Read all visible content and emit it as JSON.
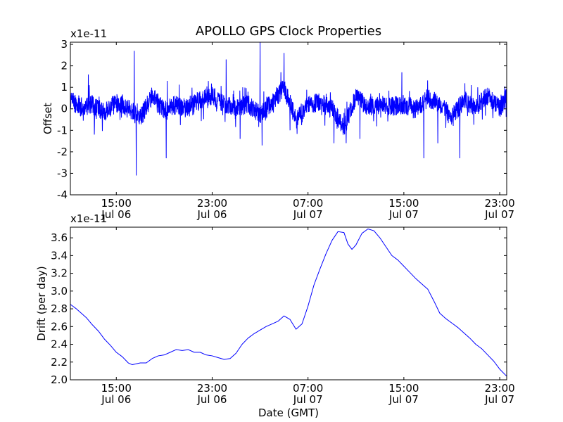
{
  "figure": {
    "title": "APOLLO GPS Clock Properties",
    "xlabel": "Date (GMT)"
  },
  "chart_data": [
    {
      "type": "line",
      "ylabel": "Offset",
      "y_multiplier": "x1e-11",
      "ylim": [
        -4,
        3.1
      ],
      "yticks": [
        -4,
        -3,
        -2,
        -1,
        0,
        1,
        2,
        3
      ],
      "xlim": [
        "Jul 06 11:10",
        "Jul 07 23:35"
      ],
      "xticks": [
        {
          "time": "15:00",
          "date": "Jul 06",
          "at": "Jul 06 15:00"
        },
        {
          "time": "23:00",
          "date": "Jul 06",
          "at": "Jul 06 23:00"
        },
        {
          "time": "07:00",
          "date": "Jul 07",
          "at": "Jul 07 07:00"
        },
        {
          "time": "15:00",
          "date": "Jul 07",
          "at": "Jul 07 15:00"
        },
        {
          "time": "23:00",
          "date": "Jul 07",
          "at": "Jul 07 23:00"
        }
      ],
      "grid": false,
      "color": "#0000ff",
      "series": [
        {
          "x": [
            "Jul 06 11:10",
            "Jul 06 12:00",
            "Jul 06 13:00",
            "Jul 06 14:00",
            "Jul 06 15:00",
            "Jul 06 16:00",
            "Jul 06 17:00",
            "Jul 06 18:00",
            "Jul 06 19:00",
            "Jul 06 20:00",
            "Jul 06 21:00",
            "Jul 06 22:00",
            "Jul 06 23:00",
            "Jul 07 00:00",
            "Jul 07 01:00",
            "Jul 07 02:00",
            "Jul 07 03:00",
            "Jul 07 04:00",
            "Jul 07 05:00",
            "Jul 07 06:00",
            "Jul 07 07:00",
            "Jul 07 08:00",
            "Jul 07 09:00",
            "Jul 07 10:00",
            "Jul 07 11:00",
            "Jul 07 12:00",
            "Jul 07 13:00",
            "Jul 07 14:00",
            "Jul 07 15:00",
            "Jul 07 16:00",
            "Jul 07 17:00",
            "Jul 07 18:00",
            "Jul 07 19:00",
            "Jul 07 20:00",
            "Jul 07 21:00",
            "Jul 07 22:00",
            "Jul 07 23:00",
            "Jul 07 23:35"
          ],
          "values": [
            0.4,
            0.1,
            0.2,
            -0.2,
            0.3,
            0.0,
            -0.4,
            0.6,
            -0.1,
            0.2,
            0.0,
            0.4,
            0.6,
            0.2,
            0.1,
            0.2,
            -0.3,
            0.3,
            1.0,
            -0.5,
            0.2,
            0.3,
            0.0,
            -0.9,
            0.6,
            0.1,
            0.2,
            0.1,
            0.2,
            0.0,
            0.5,
            0.2,
            -0.4,
            0.4,
            0.1,
            0.6,
            0.0,
            0.5
          ],
          "extremes": [
            {
              "x": "Jul 06 12:40",
              "value": 1.6
            },
            {
              "x": "Jul 06 13:10",
              "value": -1.2
            },
            {
              "x": "Jul 06 16:30",
              "value": 2.7
            },
            {
              "x": "Jul 06 16:40",
              "value": -3.1
            },
            {
              "x": "Jul 06 19:10",
              "value": -2.3
            },
            {
              "x": "Jul 06 19:15",
              "value": 1.3
            },
            {
              "x": "Jul 07 00:10",
              "value": 2.3
            },
            {
              "x": "Jul 07 01:20",
              "value": -1.4
            },
            {
              "x": "Jul 07 03:00",
              "value": 3.1
            },
            {
              "x": "Jul 07 03:10",
              "value": -1.7
            },
            {
              "x": "Jul 07 05:00",
              "value": 2.6
            },
            {
              "x": "Jul 07 05:30",
              "value": -1.0
            },
            {
              "x": "Jul 07 09:10",
              "value": -1.6
            },
            {
              "x": "Jul 07 11:20",
              "value": -1.4
            },
            {
              "x": "Jul 07 14:50",
              "value": 1.7
            },
            {
              "x": "Jul 07 16:40",
              "value": -2.3
            },
            {
              "x": "Jul 07 17:50",
              "value": -1.6
            },
            {
              "x": "Jul 07 19:40",
              "value": -2.3
            },
            {
              "x": "Jul 07 21:10",
              "value": 1.0
            },
            {
              "x": "Jul 07 23:30",
              "value": 0.9
            }
          ]
        }
      ]
    },
    {
      "type": "line",
      "ylabel": "Drift (per day)",
      "y_multiplier": "x1e-11",
      "ylim": [
        2.0,
        3.72
      ],
      "yticks": [
        "2.0",
        "2.2",
        "2.4",
        "2.6",
        "2.8",
        "3.0",
        "3.2",
        "3.4",
        "3.6"
      ],
      "xlim": [
        "Jul 06 11:10",
        "Jul 07 23:35"
      ],
      "xticks": [
        {
          "time": "15:00",
          "date": "Jul 06",
          "at": "Jul 06 15:00"
        },
        {
          "time": "23:00",
          "date": "Jul 06",
          "at": "Jul 06 23:00"
        },
        {
          "time": "07:00",
          "date": "Jul 07",
          "at": "Jul 07 07:00"
        },
        {
          "time": "15:00",
          "date": "Jul 07",
          "at": "Jul 07 15:00"
        },
        {
          "time": "23:00",
          "date": "Jul 07",
          "at": "Jul 07 23:00"
        }
      ],
      "grid": false,
      "color": "#0000ff",
      "series": [
        {
          "x": [
            "Jul 06 11:10",
            "Jul 06 11:40",
            "Jul 06 12:00",
            "Jul 06 12:30",
            "Jul 06 13:00",
            "Jul 06 13:30",
            "Jul 06 14:00",
            "Jul 06 14:30",
            "Jul 06 15:00",
            "Jul 06 15:30",
            "Jul 06 16:00",
            "Jul 06 16:20",
            "Jul 06 16:40",
            "Jul 06 17:00",
            "Jul 06 17:30",
            "Jul 06 18:00",
            "Jul 06 18:30",
            "Jul 06 19:00",
            "Jul 06 19:30",
            "Jul 06 20:00",
            "Jul 06 20:30",
            "Jul 06 21:00",
            "Jul 06 21:30",
            "Jul 06 22:00",
            "Jul 06 22:30",
            "Jul 06 23:00",
            "Jul 06 23:30",
            "Jul 07 00:00",
            "Jul 07 00:30",
            "Jul 07 01:00",
            "Jul 07 01:30",
            "Jul 07 02:00",
            "Jul 07 02:30",
            "Jul 07 03:00",
            "Jul 07 03:30",
            "Jul 07 04:00",
            "Jul 07 04:30",
            "Jul 07 05:00",
            "Jul 07 05:30",
            "Jul 07 06:00",
            "Jul 07 06:30",
            "Jul 07 07:00",
            "Jul 07 07:30",
            "Jul 07 08:00",
            "Jul 07 08:30",
            "Jul 07 09:00",
            "Jul 07 09:30",
            "Jul 07 10:00",
            "Jul 07 10:20",
            "Jul 07 10:40",
            "Jul 07 11:00",
            "Jul 07 11:30",
            "Jul 07 12:00",
            "Jul 07 12:30",
            "Jul 07 13:00",
            "Jul 07 13:30",
            "Jul 07 14:00",
            "Jul 07 14:30",
            "Jul 07 15:00",
            "Jul 07 15:30",
            "Jul 07 16:00",
            "Jul 07 16:30",
            "Jul 07 17:00",
            "Jul 07 17:30",
            "Jul 07 18:00",
            "Jul 07 18:30",
            "Jul 07 19:00",
            "Jul 07 19:30",
            "Jul 07 20:00",
            "Jul 07 20:30",
            "Jul 07 21:00",
            "Jul 07 21:30",
            "Jul 07 22:00",
            "Jul 07 22:30",
            "Jul 07 23:00",
            "Jul 07 23:35"
          ],
          "values": [
            2.85,
            2.8,
            2.76,
            2.7,
            2.62,
            2.55,
            2.46,
            2.39,
            2.31,
            2.26,
            2.19,
            2.17,
            2.18,
            2.19,
            2.19,
            2.24,
            2.27,
            2.28,
            2.31,
            2.34,
            2.33,
            2.34,
            2.31,
            2.31,
            2.28,
            2.27,
            2.25,
            2.23,
            2.24,
            2.3,
            2.4,
            2.47,
            2.52,
            2.56,
            2.6,
            2.63,
            2.66,
            2.72,
            2.68,
            2.57,
            2.63,
            2.83,
            3.07,
            3.25,
            3.42,
            3.57,
            3.67,
            3.66,
            3.53,
            3.47,
            3.52,
            3.65,
            3.7,
            3.68,
            3.6,
            3.5,
            3.4,
            3.35,
            3.28,
            3.21,
            3.14,
            3.08,
            3.02,
            2.89,
            2.75,
            2.69,
            2.64,
            2.59,
            2.53,
            2.47,
            2.4,
            2.35,
            2.28,
            2.21,
            2.12,
            2.04
          ]
        }
      ]
    }
  ]
}
